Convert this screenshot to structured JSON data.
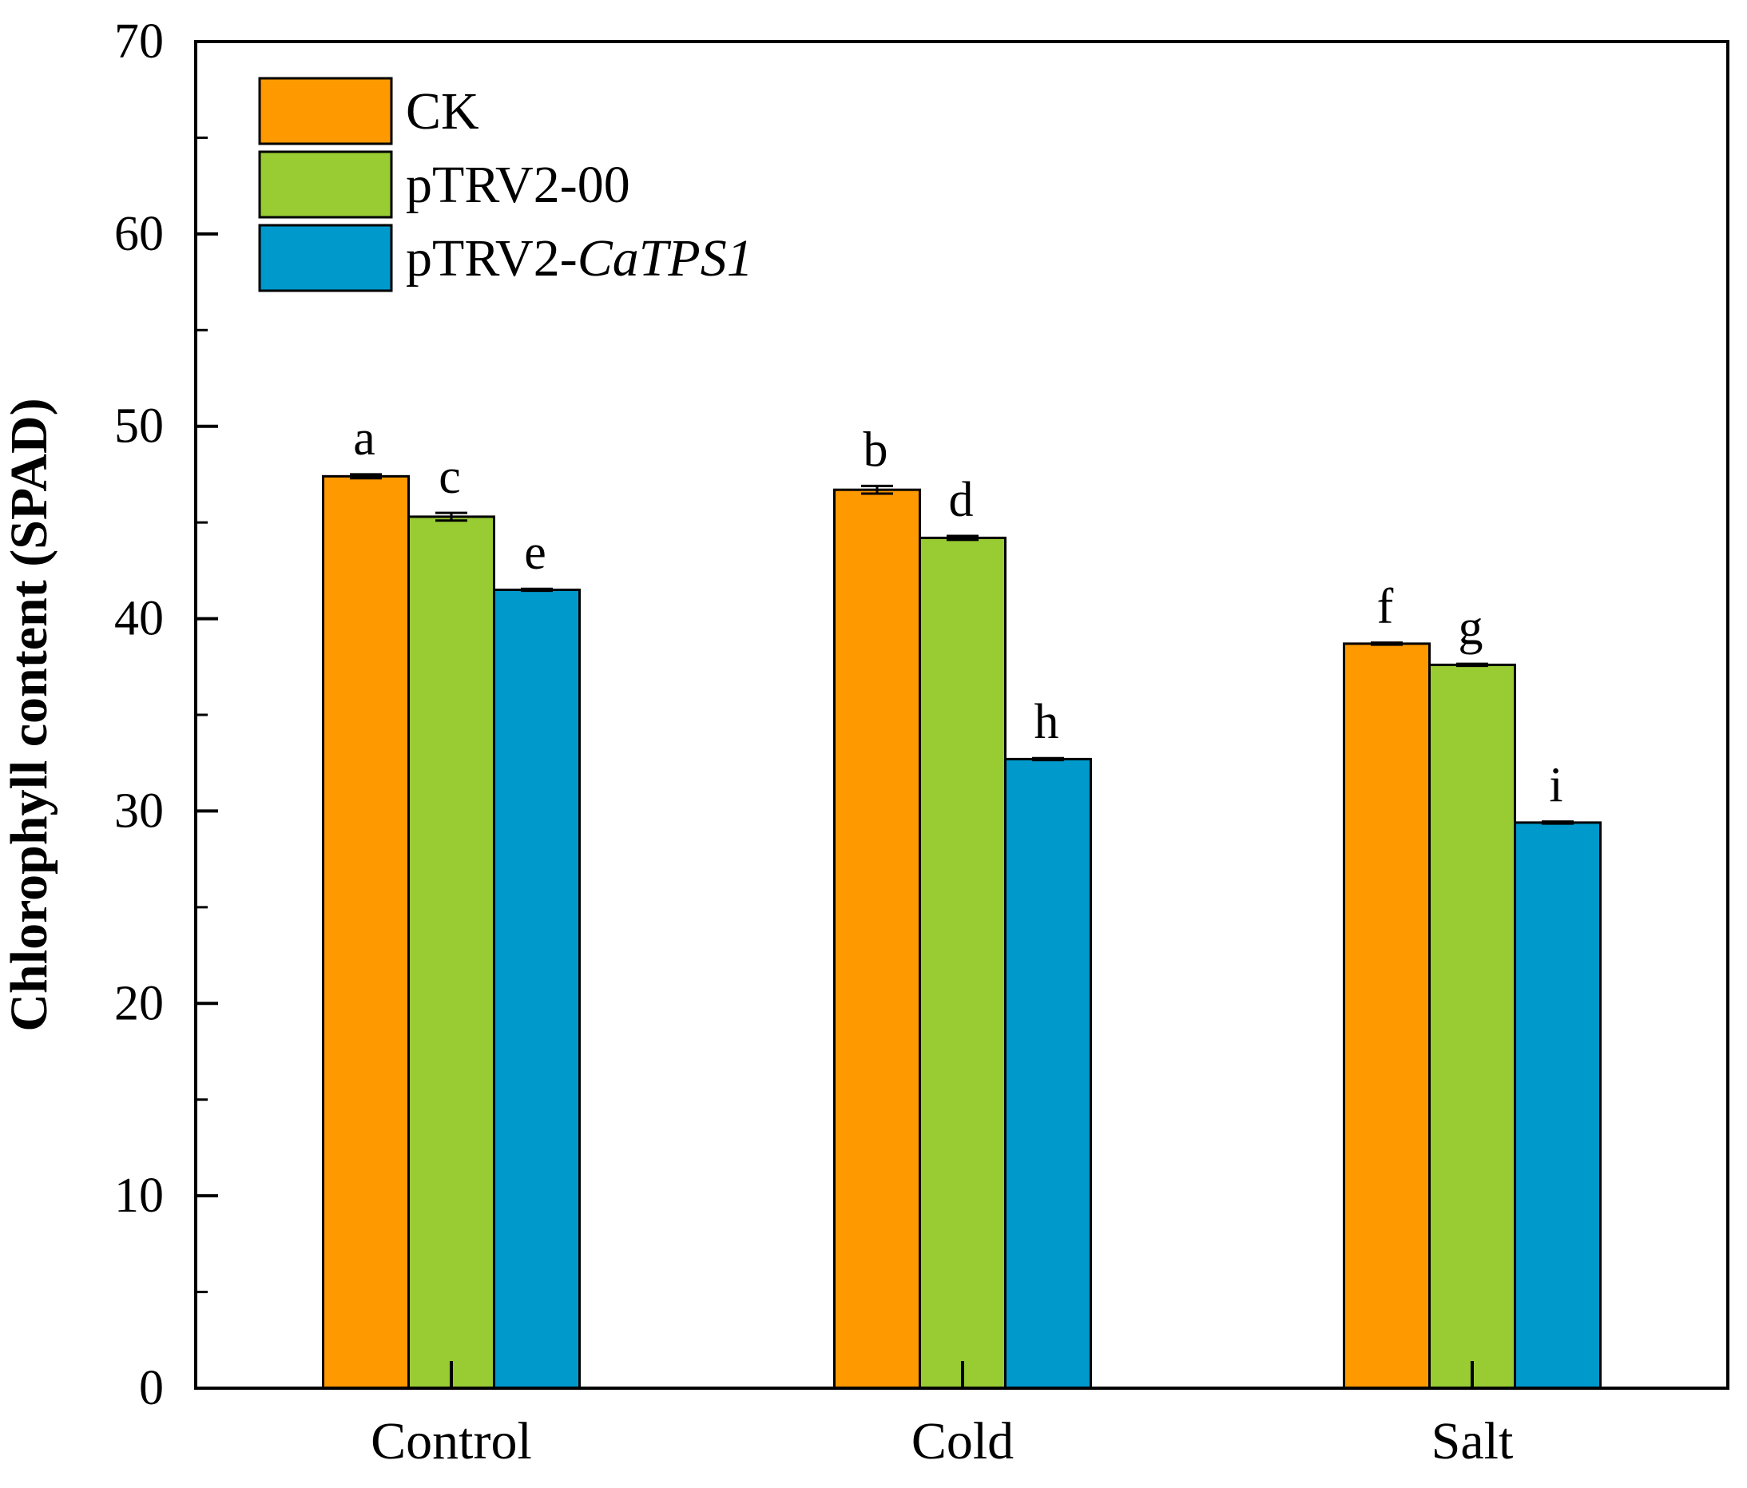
{
  "chart_data": {
    "type": "bar",
    "title": "",
    "xlabel": "",
    "ylabel": "Chlorophyll content (SPAD)",
    "ylim": [
      0,
      70
    ],
    "yticks": [
      0,
      10,
      20,
      30,
      40,
      50,
      60,
      70
    ],
    "ytick_labels": [
      "0",
      "10",
      "20",
      "30",
      "40",
      "50",
      "60",
      "70"
    ],
    "categories": [
      "Control",
      "Cold",
      "Salt"
    ],
    "legend_position": "top-left",
    "grid": false,
    "series": [
      {
        "name": "CK",
        "legend_prefix": "CK",
        "legend_italic": "",
        "color": "#FF9900",
        "values": [
          47.4,
          46.7,
          38.7
        ],
        "errors": [
          0.1,
          0.2,
          0.05
        ],
        "significance": [
          "a",
          "b",
          "f"
        ]
      },
      {
        "name": "pTRV2-00",
        "legend_prefix": "pTRV2-00",
        "legend_italic": "",
        "color": "#99CC33",
        "values": [
          45.3,
          44.2,
          37.6
        ],
        "errors": [
          0.2,
          0.1,
          0.05
        ],
        "significance": [
          "c",
          "d",
          "g"
        ]
      },
      {
        "name": "pTRV2-CaTPS1",
        "legend_prefix": "pTRV2-",
        "legend_italic": "CaTPS1",
        "color": "#0099CC",
        "values": [
          41.5,
          32.7,
          29.4
        ],
        "errors": [
          0.05,
          0.05,
          0.05
        ],
        "significance": [
          "e",
          "h",
          "i"
        ]
      }
    ]
  }
}
